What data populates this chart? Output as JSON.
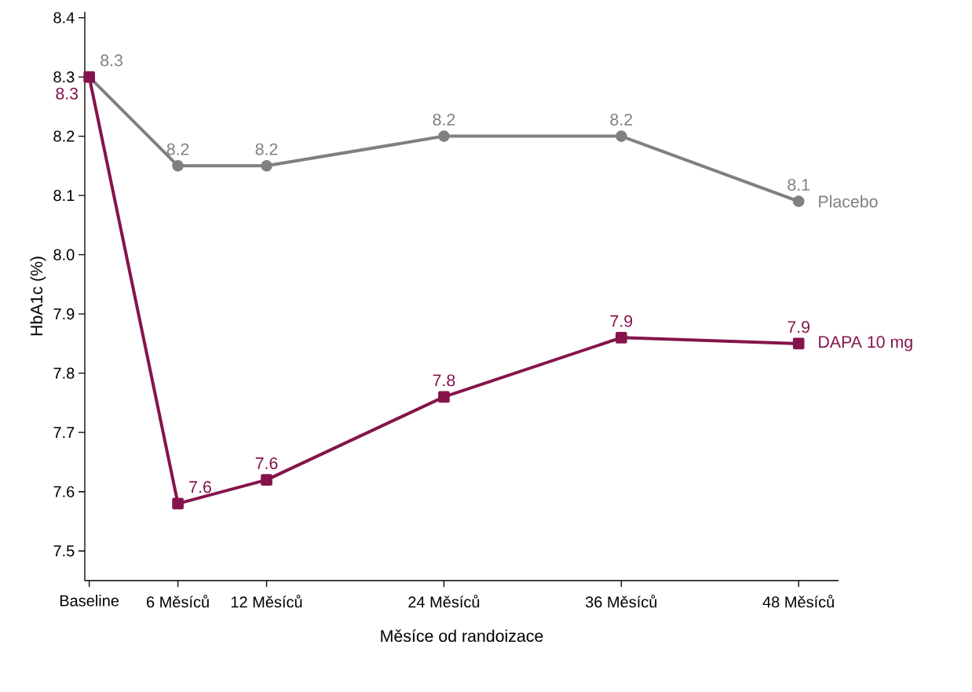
{
  "chart_data": {
    "type": "line",
    "xlabel": "Měsíce od randoizace",
    "ylabel": "HbA1c (%)",
    "x": [
      0,
      6,
      12,
      24,
      36,
      48
    ],
    "xlim": [
      -0.3,
      50.7
    ],
    "ylim": [
      7.45,
      8.41
    ],
    "xticks": [
      {
        "value": 0,
        "label": "Baseline"
      },
      {
        "value": 6,
        "label": "6 Měsíců"
      },
      {
        "value": 12,
        "label": "12 Měsíců"
      },
      {
        "value": 24,
        "label": "24 Měsíců"
      },
      {
        "value": 36,
        "label": "36 Měsíců"
      },
      {
        "value": 48,
        "label": "48 Měsíců"
      }
    ],
    "yticks": [
      7.5,
      7.6,
      7.7,
      7.8,
      7.9,
      {
        "value": 8.0,
        "label": "8.0"
      },
      8.1,
      8.2,
      8.3,
      8.4
    ],
    "grid": false,
    "line_style": "solid",
    "series": [
      {
        "name": "Placebo",
        "color": "#808080",
        "marker": "circle",
        "values": [
          8.3,
          8.15,
          8.15,
          8.2,
          8.2,
          8.09
        ],
        "value_labels": [
          "8.3",
          "8.2",
          "8.2",
          "8.2",
          "8.2",
          "8.1"
        ]
      },
      {
        "name": "DAPA 10 mg",
        "color": "#85144c",
        "marker": "square",
        "values": [
          8.3,
          7.58,
          7.62,
          7.76,
          7.86,
          7.85
        ],
        "value_labels": [
          "8.3",
          "7.6",
          "7.6",
          "7.8",
          "7.9",
          "7.9"
        ]
      }
    ]
  }
}
